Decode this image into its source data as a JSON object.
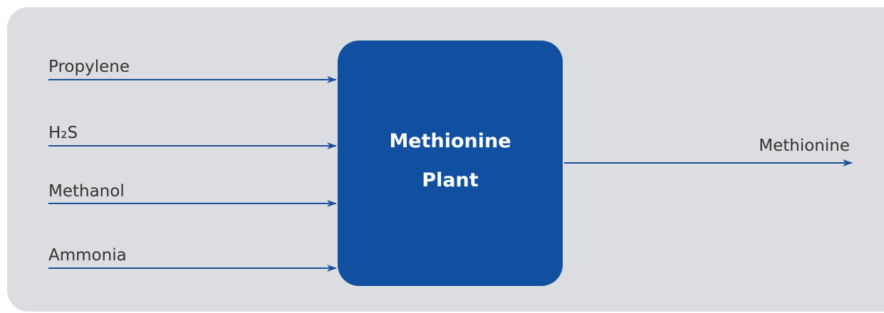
{
  "inputs": [
    {
      "label": "Propylene"
    },
    {
      "label": "H₂S"
    },
    {
      "label": "Methanol"
    },
    {
      "label": "Ammonia"
    }
  ],
  "process": {
    "lines": [
      "Methionine",
      "Plant"
    ]
  },
  "output": {
    "label": "Methionine"
  }
}
